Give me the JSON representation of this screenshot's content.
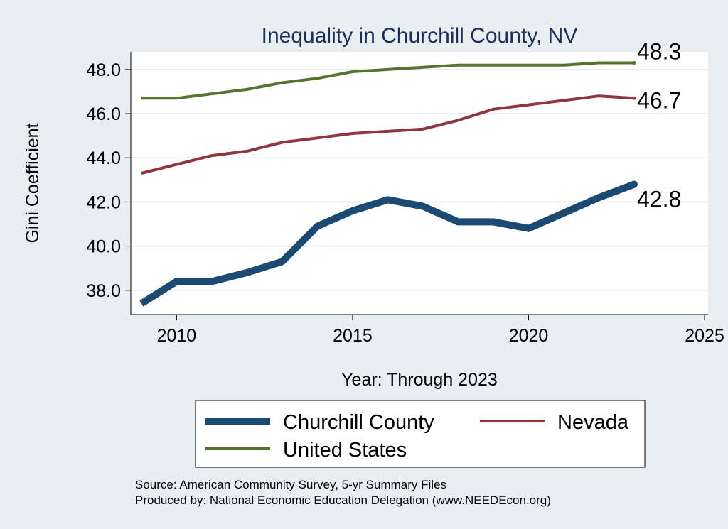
{
  "chart_data": {
    "type": "line",
    "title": "Inequality in Churchill County, NV",
    "xlabel": "Year: Through 2023",
    "ylabel": "Gini Coefficient",
    "xlim": [
      2008.7,
      2025.1
    ],
    "ylim": [
      36.9,
      48.8
    ],
    "xticks": [
      2010,
      2015,
      2020,
      2025
    ],
    "yticks": [
      38,
      40,
      42,
      44,
      46,
      48
    ],
    "ytick_labels": [
      "38.0",
      "40.0",
      "42.0",
      "44.0",
      "46.0",
      "48.0"
    ],
    "grid": true,
    "legend_position": "bottom",
    "x": [
      2009,
      2010,
      2011,
      2012,
      2013,
      2014,
      2015,
      2016,
      2017,
      2018,
      2019,
      2020,
      2021,
      2022,
      2023
    ],
    "series": [
      {
        "name": "Churchill County",
        "color": "#1b4a72",
        "values": [
          37.4,
          38.4,
          38.4,
          38.8,
          39.3,
          40.9,
          41.6,
          42.1,
          41.8,
          41.1,
          41.1,
          40.8,
          41.5,
          42.2,
          42.8
        ],
        "end_label": "42.8"
      },
      {
        "name": "Nevada",
        "color": "#90353b",
        "values": [
          43.3,
          43.7,
          44.1,
          44.3,
          44.7,
          44.9,
          45.1,
          45.2,
          45.3,
          45.7,
          46.2,
          46.4,
          46.6,
          46.8,
          46.7
        ],
        "end_label": "46.7"
      },
      {
        "name": "United States",
        "color": "#55752f",
        "values": [
          46.7,
          46.7,
          46.9,
          47.1,
          47.4,
          47.6,
          47.9,
          48.0,
          48.1,
          48.2,
          48.2,
          48.2,
          48.2,
          48.3,
          48.3
        ],
        "end_label": "48.3"
      }
    ]
  },
  "source_lines": [
    "Source: American Community Survey, 5-yr Summary Files",
    "Produced by: National Economic Education Delegation (www.NEEDEcon.org)"
  ]
}
